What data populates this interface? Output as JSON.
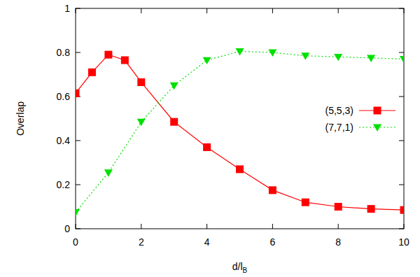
{
  "chart_data": {
    "type": "line",
    "x_label": "d/lB",
    "y_label": "Overlap",
    "xlim": [
      0,
      10
    ],
    "xticks": [
      0,
      2,
      4,
      6,
      8,
      10
    ],
    "ylim": [
      0,
      1
    ],
    "yticks": [
      0,
      0.2,
      0.4,
      0.6,
      0.8,
      1
    ],
    "grid": false,
    "legend": "right",
    "series": [
      {
        "name": "(5,5,3)",
        "color": "#ff0000",
        "marker": "square",
        "line_style": "solid",
        "x": [
          0,
          0.5,
          1,
          1.5,
          2,
          3,
          4,
          5,
          6,
          7,
          8,
          9,
          10
        ],
        "values": [
          0.615,
          0.71,
          0.79,
          0.765,
          0.665,
          0.485,
          0.37,
          0.27,
          0.175,
          0.12,
          0.1,
          0.09,
          0.085
        ]
      },
      {
        "name": "(7,7,1)",
        "color": "#00e000",
        "marker": "triangle-down",
        "line_style": "dotted",
        "x": [
          0,
          1,
          2,
          3,
          4,
          5,
          6,
          7,
          8,
          9,
          10
        ],
        "values": [
          0.075,
          0.255,
          0.485,
          0.65,
          0.765,
          0.805,
          0.8,
          0.785,
          0.78,
          0.775,
          0.77
        ]
      }
    ]
  }
}
